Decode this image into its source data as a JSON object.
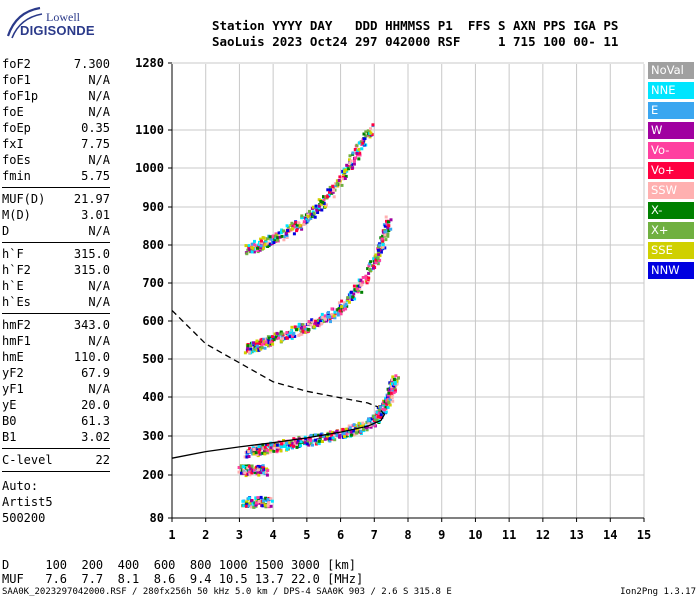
{
  "logo": {
    "line1": "Lowell",
    "line2": "DIGISONDE"
  },
  "header": {
    "line1": "Station YYYY DAY   DDD HHMMSS P1  FFS S AXN PPS IGA PS",
    "line2": "SaoLuis 2023 Oct24 297 042000 RSF     1 715 100 00- 11"
  },
  "params": {
    "group1": [
      {
        "label": "foF2",
        "value": "7.300"
      },
      {
        "label": "foF1",
        "value": "N/A"
      },
      {
        "label": "foF1p",
        "value": "N/A"
      },
      {
        "label": "foE",
        "value": "N/A"
      },
      {
        "label": "foEp",
        "value": "0.35"
      },
      {
        "label": "fxI",
        "value": "7.75"
      },
      {
        "label": "foEs",
        "value": "N/A"
      },
      {
        "label": "fmin",
        "value": "5.75"
      }
    ],
    "group2": [
      {
        "label": "MUF(D)",
        "value": "21.97"
      },
      {
        "label": "M(D)",
        "value": "3.01"
      },
      {
        "label": "D",
        "value": "N/A"
      }
    ],
    "group3": [
      {
        "label": "h`F",
        "value": "315.0"
      },
      {
        "label": "h`F2",
        "value": "315.0"
      },
      {
        "label": "h`E",
        "value": "N/A"
      },
      {
        "label": "h`Es",
        "value": "N/A"
      }
    ],
    "group4": [
      {
        "label": "hmF2",
        "value": "343.0"
      },
      {
        "label": "hmF1",
        "value": "N/A"
      },
      {
        "label": "hmE",
        "value": "110.0"
      },
      {
        "label": "yF2",
        "value": "67.9"
      },
      {
        "label": "yF1",
        "value": "N/A"
      },
      {
        "label": "yE",
        "value": "20.0"
      },
      {
        "label": "B0",
        "value": "61.3"
      },
      {
        "label": "B1",
        "value": "3.02"
      }
    ],
    "group5": [
      {
        "label": "C-level",
        "value": "22"
      }
    ]
  },
  "auto": {
    "line1": "Auto:",
    "line2": "Artist5",
    "line3": "500200"
  },
  "legend": [
    {
      "label": "NoVal",
      "color": "#a0a0a0"
    },
    {
      "label": "NNE",
      "color": "#00e5ff"
    },
    {
      "label": "E",
      "color": "#3aa6f0"
    },
    {
      "label": "W",
      "color": "#a000a0"
    },
    {
      "label": "Vo-",
      "color": "#ff40a0"
    },
    {
      "label": "Vo+",
      "color": "#ff0040"
    },
    {
      "label": "SSW",
      "color": "#ffb0b0"
    },
    {
      "label": "X-",
      "color": "#008000"
    },
    {
      "label": "X+",
      "color": "#70b040"
    },
    {
      "label": "SSE",
      "color": "#d0d000"
    },
    {
      "label": "NNW",
      "color": "#0000e0"
    }
  ],
  "chart_data": {
    "type": "scatter",
    "x_ticks": [
      "1",
      "2",
      "3",
      "4",
      "5",
      "6",
      "7",
      "8",
      "9",
      "10",
      "11",
      "12",
      "13",
      "14",
      "15"
    ],
    "y_ticks": [
      "80",
      "200",
      "300",
      "400",
      "500",
      "600",
      "700",
      "800",
      "900",
      "1000",
      "1100",
      "1280"
    ],
    "y_tick_values": [
      80,
      200,
      300,
      400,
      500,
      600,
      700,
      800,
      900,
      1000,
      1100,
      1280
    ],
    "xlim": [
      1,
      15
    ],
    "ylim": [
      80,
      1280
    ],
    "grid": true,
    "traces": [
      {
        "name": "",
        "x": [
          3.2,
          3.6,
          4.0,
          4.5,
          5.0,
          5.5,
          6.0,
          6.5,
          7.0,
          7.2,
          7.4,
          7.5,
          7.6
        ],
        "y": [
          260,
          268,
          275,
          282,
          292,
          300,
          310,
          322,
          345,
          370,
          400,
          430,
          450
        ]
      },
      {
        "name": "",
        "x": [
          3.2,
          3.6,
          4.0,
          4.5,
          5.0,
          5.5,
          6.0,
          6.5,
          7.0,
          7.2,
          7.4
        ],
        "y": [
          530,
          540,
          555,
          572,
          590,
          610,
          640,
          690,
          760,
          810,
          870
        ]
      },
      {
        "name": "",
        "x": [
          3.2,
          3.6,
          4.0,
          4.5,
          5.0,
          5.5,
          6.0,
          6.5,
          6.9
        ],
        "y": [
          790,
          805,
          820,
          845,
          875,
          920,
          980,
          1050,
          1110
        ]
      },
      {
        "name": "",
        "x": [
          3.1,
          3.5,
          3.9
        ],
        "y": [
          128,
          128,
          130
        ]
      },
      {
        "name": "",
        "x": [
          3.0,
          3.4,
          3.8
        ],
        "y": [
          215,
          215,
          216
        ]
      }
    ],
    "profile_solid": {
      "x": [
        1.0,
        2.0,
        3.0,
        4.0,
        5.0,
        6.0,
        6.8,
        7.2,
        7.3,
        7.2
      ],
      "y": [
        243,
        260,
        272,
        283,
        295,
        310,
        325,
        340,
        355,
        365
      ]
    },
    "profile_dashed": {
      "x": [
        1.0,
        2.0,
        3.0,
        4.0,
        5.0,
        6.0,
        6.8,
        7.1
      ],
      "y": [
        628,
        540,
        490,
        440,
        415,
        398,
        385,
        375
      ]
    }
  },
  "bottom": {
    "line1": "D     100  200  400  600  800 1000 1500 3000 [km]",
    "line2": "MUF   7.6  7.7  8.1  8.6  9.4 10.5 13.7 22.0 [MHz]"
  },
  "footer": {
    "text": "SAA0K_2023297042000.RSF / 280fx256h 50 kHz 5.0 km / DPS-4 SAA0K 903 / 2.6 S 315.8 E",
    "version": "Ion2Png 1.3.17"
  }
}
